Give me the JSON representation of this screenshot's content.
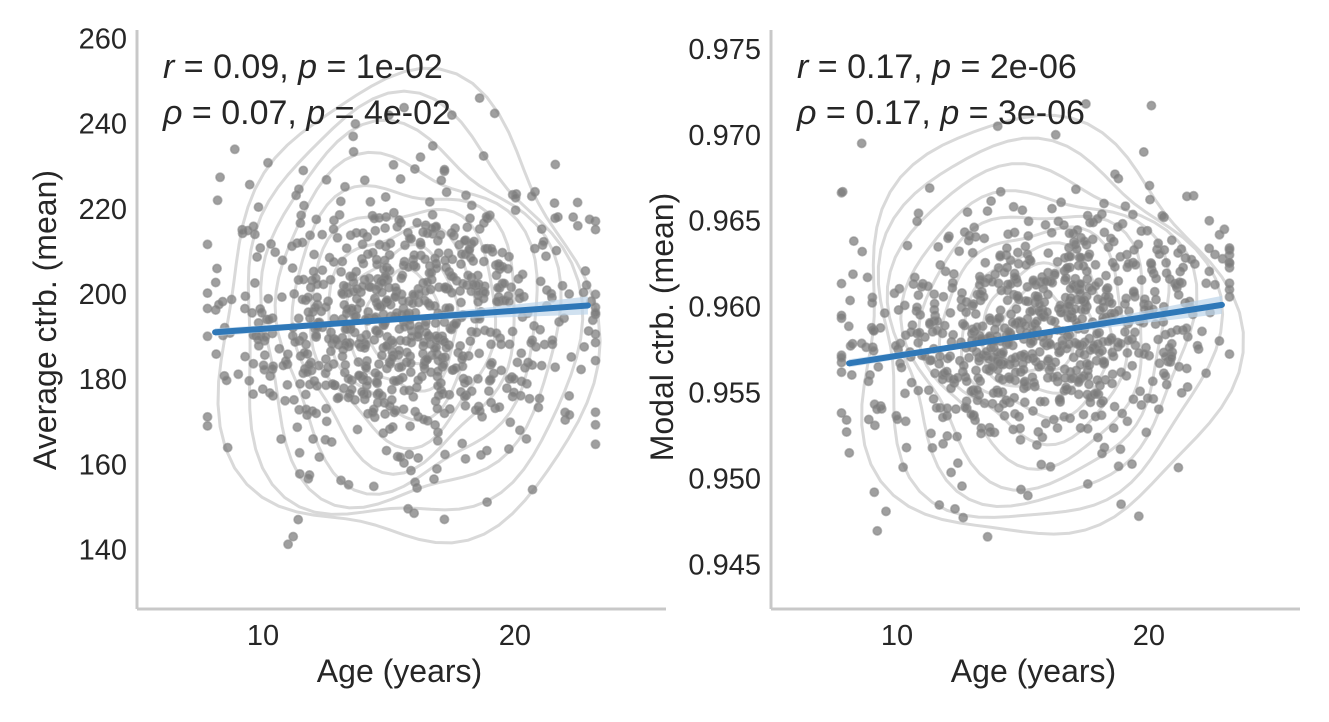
{
  "style": {
    "point_color": "#7a7a7a",
    "fit_color": "#2f78b8",
    "ci_color": "#bcd4ea",
    "contour_color": "#d9d9d9",
    "spine_color": "#c8c8c8",
    "text_color": "#262626"
  },
  "chart_data": [
    {
      "type": "scatter",
      "title": "",
      "xlabel": "Age (years)",
      "ylabel": "Average ctrb. (mean)",
      "xlim": [
        5,
        26
      ],
      "ylim": [
        126,
        262
      ],
      "xticks": [
        10,
        20
      ],
      "xtick_labels": [
        "10",
        "20"
      ],
      "yticks": [
        140,
        160,
        180,
        200,
        220,
        240,
        260
      ],
      "ytick_labels": [
        "140",
        "160",
        "180",
        "200",
        "220",
        "240",
        "260"
      ],
      "grid": false,
      "annotations": [
        {
          "var": "r",
          "text": " = 0.09, ",
          "pvar": "p",
          "ptext": " = 1e-02"
        },
        {
          "var": "ρ",
          "text": " = 0.07, ",
          "pvar": "p",
          "ptext": " = 4e-02"
        }
      ],
      "fit": {
        "x": [
          8.1,
          22.9
        ],
        "y": [
          191.0,
          197.3
        ]
      },
      "n_points": 800,
      "x_center": 15.6,
      "x_sd": 3.5,
      "y_center": 194,
      "y_sd": 17,
      "points": [
        [
          11.0,
          141.2
        ],
        [
          11.2,
          143.0
        ],
        [
          11.4,
          147.0
        ],
        [
          16.0,
          148.5
        ],
        [
          18.9,
          151.1
        ],
        [
          13.4,
          155.2
        ],
        [
          13.1,
          156.2
        ],
        [
          11.8,
          156.6
        ],
        [
          14.4,
          154.8
        ],
        [
          15.6,
          160.3
        ],
        [
          8.6,
          163.9
        ],
        [
          20.2,
          168.0
        ],
        [
          7.8,
          169.0
        ],
        [
          22.0,
          170.4
        ],
        [
          8.3,
          227.4
        ],
        [
          10.2,
          230.8
        ],
        [
          18.6,
          246.0
        ],
        [
          17.5,
          242.0
        ],
        [
          15.0,
          242.0
        ],
        [
          19.2,
          242.4
        ],
        [
          20.8,
          224.0
        ],
        [
          22.5,
          216.0
        ],
        [
          23.2,
          217.1
        ],
        [
          22.8,
          205.4
        ],
        [
          21.6,
          182.8
        ],
        [
          11.6,
          229.0
        ],
        [
          8.2,
          222.0
        ],
        [
          13.6,
          233.4
        ]
      ]
    },
    {
      "type": "scatter",
      "title": "",
      "xlabel": "Age (years)",
      "ylabel": "Modal ctrb. (mean)",
      "xlim": [
        5,
        26
      ],
      "ylim": [
        0.9424,
        0.9761
      ],
      "xticks": [
        10,
        20
      ],
      "xtick_labels": [
        "10",
        "20"
      ],
      "yticks": [
        0.945,
        0.95,
        0.955,
        0.96,
        0.965,
        0.97,
        0.975
      ],
      "ytick_labels": [
        "0.945",
        "0.950",
        "0.955",
        "0.960",
        "0.965",
        "0.970",
        "0.975"
      ],
      "grid": false,
      "annotations": [
        {
          "var": "r",
          "text": " = 0.17, ",
          "pvar": "p",
          "ptext": " = 2e-06"
        },
        {
          "var": "ρ",
          "text": " = 0.17, ",
          "pvar": "p",
          "ptext": " = 3e-06"
        }
      ],
      "fit": {
        "x": [
          8.1,
          22.9
        ],
        "y": [
          0.9567,
          0.9601
        ]
      },
      "n_points": 800,
      "x_center": 15.6,
      "x_sd": 3.5,
      "y_center": 0.9585,
      "y_sd": 0.0038,
      "points": [
        [
          13.6,
          0.9466
        ],
        [
          19.6,
          0.9478
        ],
        [
          18.9,
          0.9485
        ],
        [
          15.2,
          0.949
        ],
        [
          9.1,
          0.9492
        ],
        [
          8.6,
          0.9695
        ],
        [
          17.5,
          0.9718
        ],
        [
          20.1,
          0.9717
        ],
        [
          19.8,
          0.969
        ],
        [
          20.6,
          0.9652
        ],
        [
          22.4,
          0.965
        ],
        [
          23.0,
          0.9645
        ],
        [
          22.8,
          0.958
        ],
        [
          8.0,
          0.9527
        ],
        [
          8.0,
          0.9534
        ],
        [
          11.3,
          0.9669
        ],
        [
          14.0,
          0.9705
        ],
        [
          16.3,
          0.97
        ],
        [
          12.8,
          0.9655
        ],
        [
          21.2,
          0.9565
        ]
      ]
    }
  ]
}
